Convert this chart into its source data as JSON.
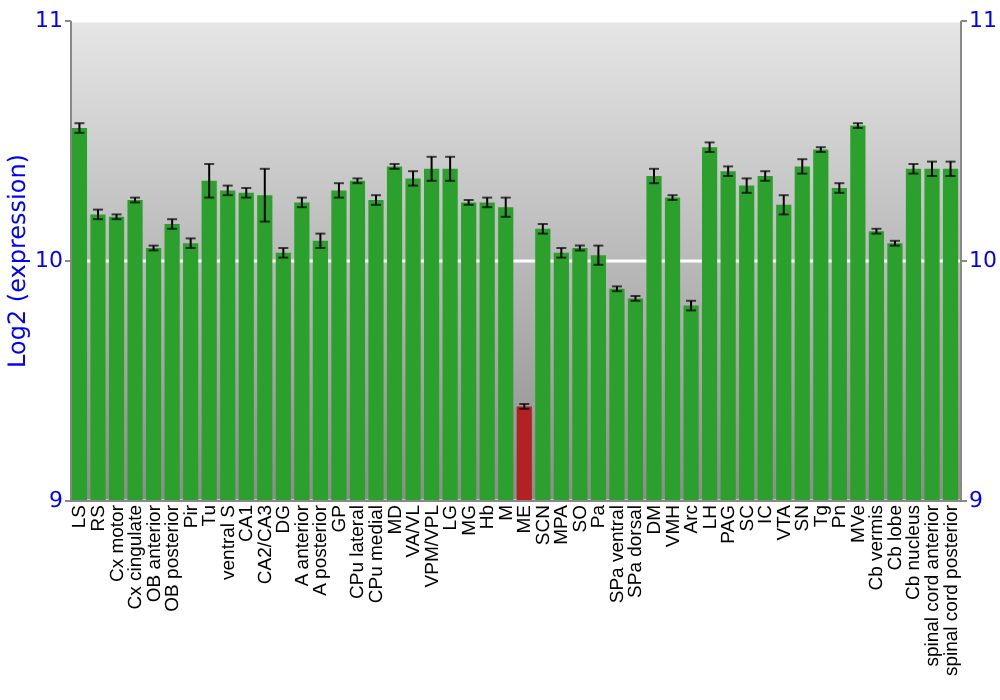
{
  "chart_data": {
    "type": "bar",
    "ylabel": "Log2 (expression)",
    "categories": [
      "LS",
      "RS",
      "Cx motor",
      "Cx cingulate",
      "OB anterior",
      "OB posterior",
      "Pir",
      "Tu",
      "ventral S",
      "CA1",
      "CA2/CA3",
      "DG",
      "A anterior",
      "A posterior",
      "GP",
      "CPu lateral",
      "CPu medial",
      "MD",
      "VA/VL",
      "VPM/VPL",
      "LG",
      "MG",
      "Hb",
      "M",
      "ME",
      "SCN",
      "MPA",
      "SO",
      "Pa",
      "SPa ventral",
      "SPa dorsal",
      "DM",
      "VMH",
      "Arc",
      "LH",
      "PAG",
      "SC",
      "IC",
      "VTA",
      "SN",
      "Tg",
      "Pn",
      "MVe",
      "Cb vermis",
      "Cb lobe",
      "Cb nucleus",
      "spinal cord anterior",
      "spinal cord posterior"
    ],
    "values": [
      10.55,
      10.19,
      10.18,
      10.25,
      10.05,
      10.15,
      10.07,
      10.33,
      10.29,
      10.28,
      10.27,
      10.03,
      10.24,
      10.08,
      10.29,
      10.33,
      10.25,
      10.39,
      10.34,
      10.38,
      10.38,
      10.24,
      10.24,
      10.22,
      9.39,
      10.13,
      10.03,
      10.05,
      10.02,
      9.88,
      9.84,
      10.35,
      10.26,
      9.81,
      10.47,
      10.37,
      10.31,
      10.35,
      10.23,
      10.39,
      10.46,
      10.3,
      10.56,
      10.12,
      10.07,
      10.38,
      10.38,
      10.38
    ],
    "errors": [
      0.02,
      0.02,
      0.01,
      0.01,
      0.01,
      0.02,
      0.02,
      0.07,
      0.02,
      0.02,
      0.11,
      0.02,
      0.02,
      0.03,
      0.03,
      0.01,
      0.02,
      0.01,
      0.03,
      0.05,
      0.05,
      0.01,
      0.02,
      0.04,
      0.01,
      0.02,
      0.02,
      0.01,
      0.04,
      0.01,
      0.01,
      0.03,
      0.01,
      0.02,
      0.02,
      0.02,
      0.03,
      0.02,
      0.04,
      0.03,
      0.01,
      0.02,
      0.01,
      0.01,
      0.01,
      0.02,
      0.03,
      0.03
    ],
    "colors": [
      "#2ca02c",
      "#2ca02c",
      "#2ca02c",
      "#2ca02c",
      "#2ca02c",
      "#2ca02c",
      "#2ca02c",
      "#2ca02c",
      "#2ca02c",
      "#2ca02c",
      "#2ca02c",
      "#2ca02c",
      "#2ca02c",
      "#2ca02c",
      "#2ca02c",
      "#2ca02c",
      "#2ca02c",
      "#2ca02c",
      "#2ca02c",
      "#2ca02c",
      "#2ca02c",
      "#2ca02c",
      "#2ca02c",
      "#2ca02c",
      "#b22222",
      "#2ca02c",
      "#2ca02c",
      "#2ca02c",
      "#2ca02c",
      "#2ca02c",
      "#2ca02c",
      "#2ca02c",
      "#2ca02c",
      "#2ca02c",
      "#2ca02c",
      "#2ca02c",
      "#2ca02c",
      "#2ca02c",
      "#2ca02c",
      "#2ca02c",
      "#2ca02c",
      "#2ca02c",
      "#2ca02c",
      "#2ca02c",
      "#2ca02c",
      "#2ca02c",
      "#2ca02c",
      "#2ca02c"
    ],
    "ylim": [
      9,
      11
    ],
    "yticks": [
      9,
      10,
      11
    ],
    "y2lim": [
      9,
      11
    ],
    "y2ticks": [
      9,
      10,
      11
    ],
    "grid": "y"
  }
}
